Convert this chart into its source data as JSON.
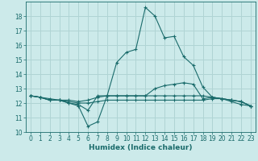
{
  "xlabel": "Humidex (Indice chaleur)",
  "xlim": [
    -0.5,
    23.5
  ],
  "ylim": [
    10,
    19
  ],
  "yticks": [
    10,
    11,
    12,
    13,
    14,
    15,
    16,
    17,
    18
  ],
  "xticks": [
    0,
    1,
    2,
    3,
    4,
    5,
    6,
    7,
    8,
    9,
    10,
    11,
    12,
    13,
    14,
    15,
    16,
    17,
    18,
    19,
    20,
    21,
    22,
    23
  ],
  "bg_color": "#cceaea",
  "grid_color": "#b0d4d4",
  "line_color": "#1a6b6b",
  "lines": [
    [
      12.5,
      12.4,
      12.2,
      12.2,
      12.0,
      11.8,
      10.4,
      10.7,
      12.5,
      14.8,
      15.5,
      15.7,
      18.6,
      18.0,
      16.5,
      16.6,
      15.2,
      14.6,
      13.1,
      12.4,
      12.3,
      12.1,
      11.9,
      11.8
    ],
    [
      12.5,
      12.4,
      12.2,
      12.2,
      12.0,
      11.9,
      11.5,
      12.5,
      12.5,
      12.5,
      12.5,
      12.5,
      12.5,
      13.0,
      13.2,
      13.3,
      13.4,
      13.3,
      12.3,
      12.4,
      12.3,
      12.2,
      12.1,
      11.8
    ],
    [
      12.5,
      12.4,
      12.2,
      12.2,
      12.1,
      12.0,
      12.0,
      12.1,
      12.2,
      12.2,
      12.2,
      12.2,
      12.2,
      12.2,
      12.2,
      12.2,
      12.2,
      12.2,
      12.2,
      12.3,
      12.3,
      12.2,
      12.1,
      11.8
    ],
    [
      12.5,
      12.4,
      12.3,
      12.2,
      12.2,
      12.1,
      12.2,
      12.4,
      12.5,
      12.5,
      12.5,
      12.5,
      12.5,
      12.5,
      12.5,
      12.5,
      12.5,
      12.5,
      12.5,
      12.4,
      12.3,
      12.2,
      12.1,
      11.8
    ]
  ],
  "label_fontsize": 6.5,
  "tick_fontsize": 5.5
}
